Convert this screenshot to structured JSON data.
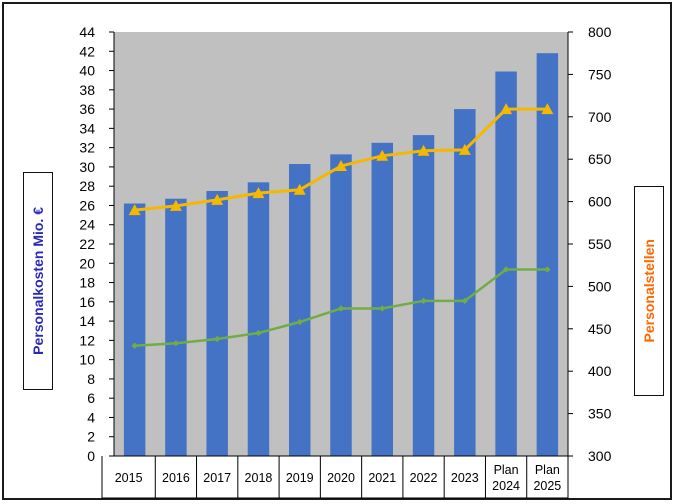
{
  "colors": {
    "plot_bg": "#c0c0c0",
    "bar": "#4472c4",
    "line_yellow": "#f5b800",
    "line_green": "#70ad47",
    "label_left": "#2a2ab8",
    "label_right": "#ff6600"
  },
  "labels": {
    "left_axis": "Personalkosten Mio. €",
    "right_axis": "Personalstellen"
  },
  "chart_data": {
    "type": "bar",
    "categories": [
      [
        "2015"
      ],
      [
        "2016"
      ],
      [
        "2017"
      ],
      [
        "2018"
      ],
      [
        "2019"
      ],
      [
        "2020"
      ],
      [
        "2021"
      ],
      [
        "2022"
      ],
      [
        "2023"
      ],
      [
        "Plan",
        "2024"
      ],
      [
        "Plan",
        "2025"
      ]
    ],
    "ylabel": "Personalkosten Mio. €",
    "y2label": "Personalstellen",
    "ylim": [
      0,
      44
    ],
    "y_ticks": [
      0,
      2,
      4,
      6,
      8,
      10,
      12,
      14,
      16,
      18,
      20,
      22,
      24,
      26,
      28,
      30,
      32,
      34,
      36,
      38,
      40,
      42,
      44
    ],
    "y2lim": [
      300,
      800
    ],
    "y2_ticks": [
      300,
      350,
      400,
      450,
      500,
      550,
      600,
      650,
      700,
      750,
      800
    ],
    "grid": false,
    "legend": "none",
    "series": [
      {
        "axis": "left",
        "type": "bar",
        "color": "#4472c4",
        "values": [
          26.2,
          26.7,
          27.5,
          28.4,
          30.3,
          31.3,
          32.5,
          33.3,
          36.0,
          39.9,
          41.8
        ]
      },
      {
        "axis": "right",
        "type": "line",
        "marker": "triangle",
        "color": "#f5b800",
        "values": [
          590,
          595,
          602,
          610,
          614,
          642,
          654,
          660,
          661,
          709,
          709
        ]
      },
      {
        "axis": "right",
        "type": "line",
        "marker": "diamond",
        "color": "#70ad47",
        "values": [
          430,
          433,
          438,
          445,
          458,
          474,
          474,
          483,
          483,
          520,
          520
        ]
      }
    ]
  }
}
